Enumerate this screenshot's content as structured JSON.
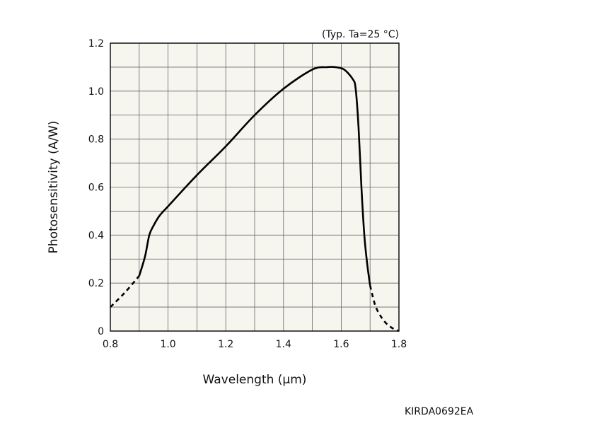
{
  "chart_data": {
    "type": "line",
    "annotation": "(Typ. Ta=25 °C)",
    "xlabel": "Wavelength (µm)",
    "ylabel": "Photosensitivity (A/W)",
    "xlim": [
      0.8,
      1.8
    ],
    "ylim": [
      0,
      1.2
    ],
    "x_ticks": [
      "0.8",
      "1.0",
      "1.2",
      "1.4",
      "1.6",
      "1.8"
    ],
    "y_ticks": [
      "0",
      "0.2",
      "0.4",
      "0.6",
      "0.8",
      "1.0",
      "1.2"
    ],
    "grid": true,
    "grid_minor_step_x": 0.1,
    "grid_minor_step_y": 0.1,
    "plot_background": "#f6f5ee",
    "line_color": "#000000",
    "series": [
      {
        "style": "dashed",
        "x": [
          0.8,
          0.85,
          0.9
        ],
        "y": [
          0.1,
          0.16,
          0.23
        ]
      },
      {
        "style": "solid",
        "x": [
          0.9,
          0.92,
          0.935,
          0.95,
          0.97,
          1.0,
          1.1,
          1.2,
          1.3,
          1.4,
          1.5,
          1.55,
          1.58,
          1.61,
          1.64,
          1.65,
          1.66,
          1.67,
          1.68,
          1.69,
          1.7
        ],
        "y": [
          0.23,
          0.31,
          0.4,
          0.44,
          0.48,
          0.52,
          0.65,
          0.77,
          0.9,
          1.01,
          1.09,
          1.1,
          1.1,
          1.09,
          1.05,
          1.01,
          0.85,
          0.6,
          0.4,
          0.28,
          0.19
        ]
      },
      {
        "style": "dashed",
        "x": [
          1.7,
          1.72,
          1.75,
          1.78,
          1.8
        ],
        "y": [
          0.19,
          0.1,
          0.04,
          0.01,
          0.0
        ]
      }
    ]
  },
  "figure_code": "KIRDA0692EA"
}
